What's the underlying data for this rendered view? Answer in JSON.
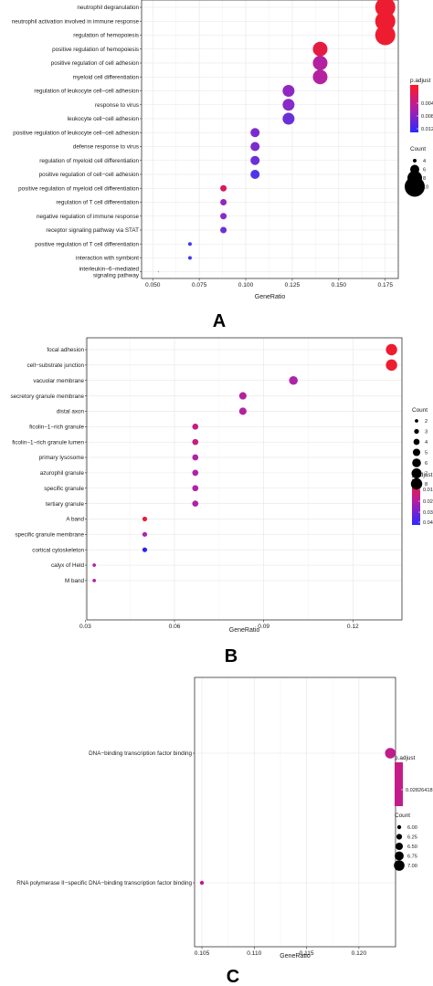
{
  "chart_data": [
    {
      "panel_label": "A",
      "type": "scatter",
      "xlabel": "GeneRatio",
      "ticks": [
        0.05,
        0.075,
        0.1,
        0.125,
        0.15,
        0.175
      ],
      "tick_labels": [
        "0.050",
        "0.075",
        "0.100",
        "0.125",
        "0.150",
        "0.175"
      ],
      "xlim": [
        0.044,
        0.182
      ],
      "size_legend": {
        "title": "Count",
        "entries": [
          "4",
          "6",
          "8",
          "10"
        ],
        "values": [
          4,
          6,
          8,
          10
        ]
      },
      "color_legend": {
        "title": "p.adjust",
        "entries": [
          "0.004",
          "0.008",
          "0.012"
        ]
      },
      "size_range": [
        2,
        11
      ],
      "categories": [
        "neutrophil degranulation",
        "neutrophil activation involved in immune response",
        "regulation of hemopoiesis",
        "positive regulation of hemopoiesis",
        "positive regulation of cell adhesion",
        "myeloid cell differentiation",
        "regulation of leukocyte cell−cell adhesion",
        "response to virus",
        "leukocyte cell−cell adhesion",
        "positive regulation of leukocyte cell−cell adhesion",
        "defense response to virus",
        "regulation of myeloid cell differentiation",
        "positive regulation of cell−cell adhesion",
        "positive regulation of myeloid cell differentiation",
        "regulation of T cell differentiation",
        "negative regulation of immune response",
        "receptor signaling pathway via STAT",
        "positive regulation of T cell differentiation",
        "interaction with symbiont",
        "interleukin−6−mediated signaling pathway"
      ],
      "values": [
        0.175,
        0.175,
        0.175,
        0.14,
        0.14,
        0.14,
        0.123,
        0.123,
        0.123,
        0.105,
        0.105,
        0.105,
        0.105,
        0.088,
        0.088,
        0.088,
        0.088,
        0.07,
        0.07,
        0.053
      ],
      "count": [
        10,
        10,
        10,
        8,
        8,
        8,
        7,
        7,
        7,
        6,
        6,
        6,
        6,
        5,
        5,
        5,
        5,
        4,
        4,
        3
      ],
      "p_adjust_color": [
        "#ee1c30",
        "#ee1c30",
        "#ee1c30",
        "#e41c44",
        "#b321a0",
        "#b522a0",
        "#9028c0",
        "#8a2ac8",
        "#6a30d8",
        "#7a2dcc",
        "#7d2ccc",
        "#6d30d6",
        "#4d36ea",
        "#d61d58",
        "#9128c0",
        "#8a2ac8",
        "#6d30d6",
        "#4038f0",
        "#4038f0",
        "#3a3cf4"
      ]
    },
    {
      "panel_label": "B",
      "type": "scatter",
      "xlabel": "GeneRatio",
      "ticks": [
        0.03,
        0.06,
        0.09,
        0.12
      ],
      "tick_labels": [
        "0.03",
        "0.06",
        "0.09",
        "0.12"
      ],
      "xlim": [
        0.0305,
        0.1365
      ],
      "size_legend": {
        "title": "Count",
        "entries": [
          "2",
          "3",
          "4",
          "5",
          "6",
          "7",
          "8"
        ],
        "values": [
          2,
          3,
          4,
          5,
          6,
          7,
          8
        ]
      },
      "color_legend": {
        "title": "p.adjust",
        "entries": [
          "0.01",
          "0.02",
          "0.03",
          "0.04"
        ]
      },
      "size_range": [
        1.9,
        6.2
      ],
      "categories": [
        "focal adhesion",
        "cell−substrate junction",
        "vacuolar membrane",
        "secretory granule membrane",
        "distal axon",
        "ficolin−1−rich granule",
        "ficolin−1−rich granule lumen",
        "primary lysosome",
        "azurophil granule",
        "specific granule",
        "tertiary granule",
        "A band",
        "specific granule membrane",
        "cortical cytoskeleton",
        "calyx of Held",
        "M band"
      ],
      "values": [
        0.133,
        0.133,
        0.1,
        0.083,
        0.083,
        0.067,
        0.067,
        0.067,
        0.067,
        0.067,
        0.067,
        0.05,
        0.05,
        0.05,
        0.033,
        0.033
      ],
      "count": [
        8,
        8,
        6,
        5,
        5,
        4,
        4,
        4,
        4,
        4,
        4,
        3,
        3,
        3,
        2,
        2
      ],
      "p_adjust_color": [
        "#ee1c30",
        "#ee1c30",
        "#ae24a8",
        "#b322a0",
        "#b322a0",
        "#c51f7c",
        "#c51f7c",
        "#b023a4",
        "#b023a4",
        "#b023a4",
        "#b023a4",
        "#ec1c38",
        "#a826b0",
        "#2424f5",
        "#b323a8",
        "#b323a8"
      ]
    },
    {
      "panel_label": "C",
      "type": "scatter",
      "xlabel": "GeneRatio",
      "ticks": [
        0.105,
        0.11,
        0.115,
        0.12
      ],
      "tick_labels": [
        "0.105",
        "0.110",
        "0.115",
        "0.120"
      ],
      "xlim": [
        0.1043,
        0.1235
      ],
      "size_legend": {
        "title": "Count",
        "entries": [
          "6.00",
          "6.25",
          "6.50",
          "6.75",
          "7.00"
        ],
        "values": [
          6.0,
          6.25,
          6.5,
          6.75,
          7.0
        ]
      },
      "color_legend": {
        "title": "p.adjust",
        "entries": [
          "0.02826418"
        ]
      },
      "size_range": [
        2.2,
        5.8
      ],
      "categories": [
        "DNA−binding transcription factor binding",
        "RNA polymerase II−specific DNA−binding transcription factor binding"
      ],
      "values": [
        0.123,
        0.105
      ],
      "count": [
        7,
        6
      ],
      "p_adjust_color": [
        "#c01c8c",
        "#c01c8c"
      ]
    }
  ]
}
